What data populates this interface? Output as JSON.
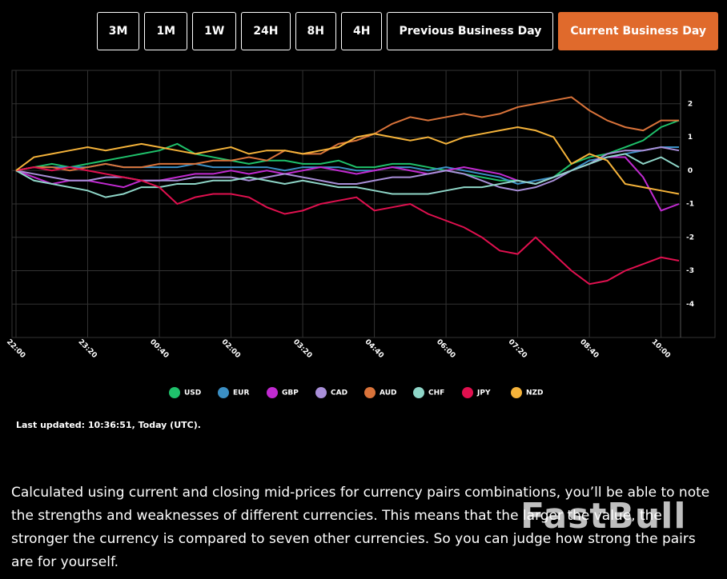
{
  "buttons": [
    "3M",
    "1M",
    "1W",
    "24H",
    "8H",
    "4H",
    "Previous Business Day",
    "Current Business Day"
  ],
  "active_button": "Current Business Day",
  "chart_data": {
    "type": "line",
    "categories": [
      "22:00",
      null,
      null,
      null,
      "23:20",
      null,
      null,
      null,
      "00:40",
      null,
      null,
      null,
      "02:00",
      null,
      null,
      null,
      "03:20",
      null,
      null,
      null,
      "04:40",
      null,
      null,
      null,
      "06:00",
      null,
      null,
      null,
      "07:20",
      null,
      null,
      null,
      "08:40",
      null,
      null,
      null,
      "10:00",
      null
    ],
    "ylim": [
      -5,
      3
    ],
    "yticks": [
      2,
      1,
      0,
      -1,
      -2,
      -3,
      -4
    ],
    "grid": true,
    "series": [
      {
        "name": "USD",
        "color": "#1fc16b",
        "values": [
          0,
          0.1,
          0.2,
          0.1,
          0.2,
          0.3,
          0.4,
          0.5,
          0.6,
          0.8,
          0.5,
          0.4,
          0.3,
          0.2,
          0.3,
          0.3,
          0.2,
          0.2,
          0.3,
          0.1,
          0.1,
          0.2,
          0.2,
          0.1,
          0.0,
          -0.1,
          -0.2,
          -0.3,
          -0.3,
          -0.4,
          -0.2,
          0.2,
          0.4,
          0.5,
          0.7,
          0.9,
          1.3,
          1.5
        ]
      },
      {
        "name": "EUR",
        "color": "#3b8fc4",
        "values": [
          0,
          0.1,
          0.1,
          0.1,
          0.1,
          0.2,
          0.1,
          0.1,
          0.1,
          0.1,
          0.2,
          0.1,
          0.1,
          0.1,
          0.1,
          0.0,
          0.1,
          0.1,
          0.1,
          0.0,
          0.0,
          0.1,
          0.1,
          0.0,
          0.1,
          0.0,
          -0.1,
          -0.2,
          -0.4,
          -0.3,
          -0.2,
          0.0,
          0.3,
          0.4,
          0.5,
          0.6,
          0.7,
          0.7
        ]
      },
      {
        "name": "GBP",
        "color": "#c12ad1",
        "values": [
          0,
          -0.2,
          -0.4,
          -0.3,
          -0.3,
          -0.4,
          -0.5,
          -0.3,
          -0.3,
          -0.2,
          -0.1,
          -0.1,
          0.0,
          -0.1,
          0.0,
          -0.1,
          0.0,
          0.1,
          0.0,
          -0.1,
          0.0,
          0.1,
          0.0,
          -0.1,
          0.0,
          0.1,
          0.0,
          -0.1,
          -0.3,
          -0.4,
          -0.2,
          0.0,
          0.2,
          0.4,
          0.4,
          -0.2,
          -1.2,
          -1.0
        ]
      },
      {
        "name": "CAD",
        "color": "#a98fd9",
        "values": [
          0,
          -0.1,
          -0.2,
          -0.3,
          -0.3,
          -0.2,
          -0.2,
          -0.3,
          -0.3,
          -0.3,
          -0.2,
          -0.2,
          -0.2,
          -0.3,
          -0.2,
          -0.1,
          -0.2,
          -0.3,
          -0.4,
          -0.4,
          -0.3,
          -0.2,
          -0.2,
          -0.1,
          0.0,
          -0.1,
          -0.3,
          -0.5,
          -0.6,
          -0.5,
          -0.3,
          0.0,
          0.2,
          0.5,
          0.6,
          0.6,
          0.7,
          0.6
        ]
      },
      {
        "name": "AUD",
        "color": "#d9733a",
        "values": [
          0,
          0.1,
          0.1,
          0.0,
          0.1,
          0.2,
          0.1,
          0.1,
          0.2,
          0.2,
          0.2,
          0.3,
          0.3,
          0.4,
          0.3,
          0.6,
          0.5,
          0.5,
          0.8,
          0.9,
          1.1,
          1.4,
          1.6,
          1.5,
          1.6,
          1.7,
          1.6,
          1.7,
          1.9,
          2.0,
          2.1,
          2.2,
          1.8,
          1.5,
          1.3,
          1.2,
          1.5,
          1.5
        ]
      },
      {
        "name": "CHF",
        "color": "#8fd6c8",
        "values": [
          0,
          -0.3,
          -0.4,
          -0.5,
          -0.6,
          -0.8,
          -0.7,
          -0.5,
          -0.5,
          -0.4,
          -0.4,
          -0.3,
          -0.3,
          -0.2,
          -0.3,
          -0.4,
          -0.3,
          -0.4,
          -0.5,
          -0.5,
          -0.6,
          -0.7,
          -0.7,
          -0.7,
          -0.6,
          -0.5,
          -0.5,
          -0.4,
          -0.3,
          -0.4,
          -0.2,
          0.0,
          0.2,
          0.4,
          0.5,
          0.2,
          0.4,
          0.1
        ]
      },
      {
        "name": "JPY",
        "color": "#e0104f",
        "values": [
          0,
          0.1,
          0.0,
          0.1,
          0.0,
          -0.1,
          -0.2,
          -0.3,
          -0.5,
          -1.0,
          -0.8,
          -0.7,
          -0.7,
          -0.8,
          -1.1,
          -1.3,
          -1.2,
          -1.0,
          -0.9,
          -0.8,
          -1.2,
          -1.1,
          -1.0,
          -1.3,
          -1.5,
          -1.7,
          -2.0,
          -2.4,
          -2.5,
          -2.0,
          -2.5,
          -3.0,
          -3.4,
          -3.3,
          -3.0,
          -2.8,
          -2.6,
          -2.7
        ]
      },
      {
        "name": "NZD",
        "color": "#f5b33a",
        "values": [
          0,
          0.4,
          0.5,
          0.6,
          0.7,
          0.6,
          0.7,
          0.8,
          0.7,
          0.6,
          0.5,
          0.6,
          0.7,
          0.5,
          0.6,
          0.6,
          0.5,
          0.6,
          0.7,
          1.0,
          1.1,
          1.0,
          0.9,
          1.0,
          0.8,
          1.0,
          1.1,
          1.2,
          1.3,
          1.2,
          1.0,
          0.2,
          0.5,
          0.3,
          -0.4,
          -0.5,
          -0.6,
          -0.7
        ]
      }
    ]
  },
  "last_updated": "Last updated: 10:36:51, Today (UTC).",
  "description": "Calculated using current and closing mid-prices for currency pairs combinations, you’ll be able to note the strengths and weaknesses of different currencies. This means that the larger the value, the stronger the currency is compared to seven other currencies. So you can judge how strong the pairs are for yourself.",
  "watermark": "FastBull"
}
